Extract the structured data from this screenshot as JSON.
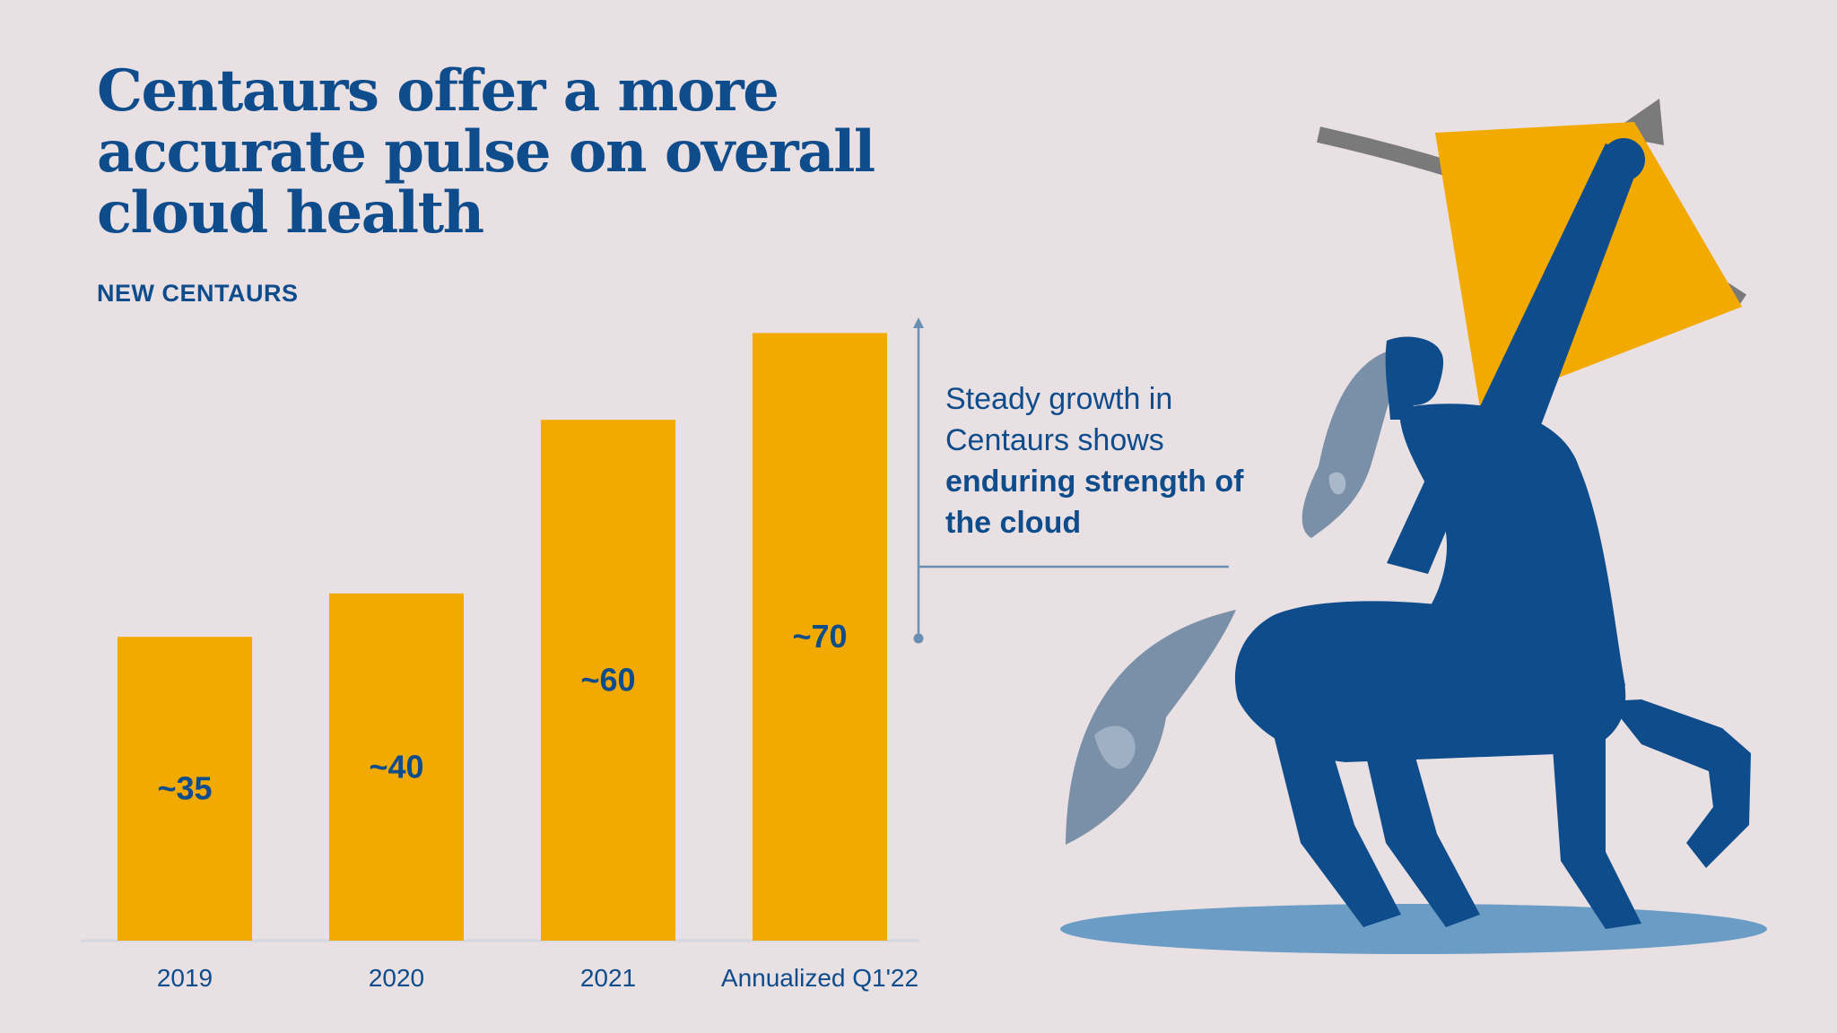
{
  "header": {
    "title": "Centaurs offer a more accurate pulse on overall cloud health",
    "subtitle": "NEW CENTAURS"
  },
  "callout": {
    "text_regular": "Steady growth in Centaurs shows",
    "text_bold": "enduring strength of the cloud"
  },
  "colors": {
    "bar": "#f2a900",
    "brand_blue": "#0e4c8b",
    "background": "#e8e0e3",
    "accent_light_blue": "#6a9cc5",
    "gray_arrow": "#7a7a7a"
  },
  "illustration": {
    "icon": "centaur-archer-icon"
  },
  "chart_data": {
    "type": "bar",
    "categories": [
      "2019",
      "2020",
      "2021",
      "Annualized Q1'22"
    ],
    "values": [
      35,
      40,
      60,
      70
    ],
    "data_labels": [
      "~35",
      "~40",
      "~60",
      "~70"
    ],
    "title": "Centaurs offer a more accurate pulse on overall cloud health",
    "subtitle": "NEW CENTAURS",
    "xlabel": "",
    "ylabel": "",
    "ylim": [
      0,
      70
    ],
    "grid": false,
    "legend": "none"
  }
}
